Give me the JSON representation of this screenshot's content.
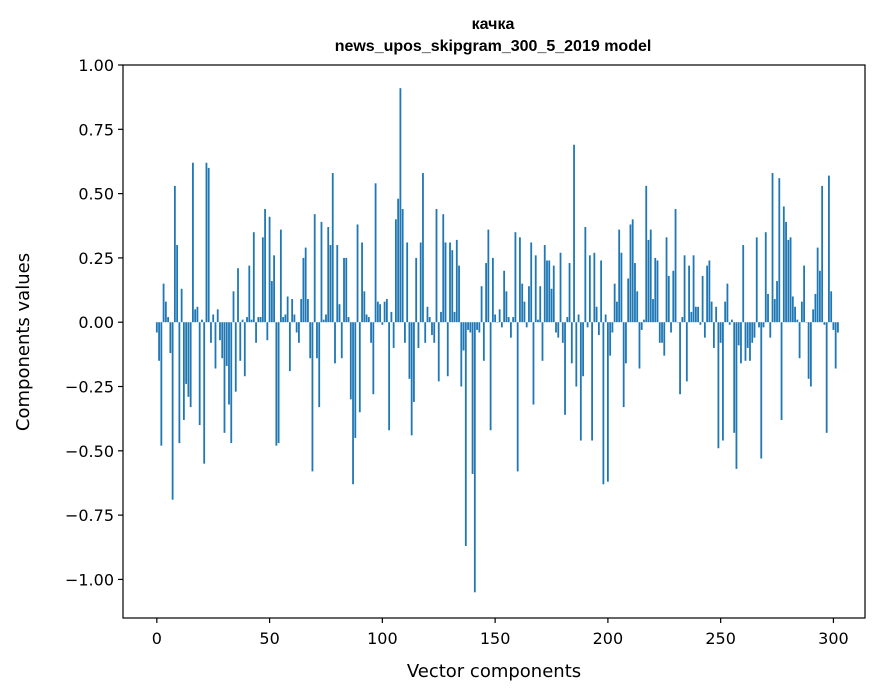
{
  "chart_data": {
    "type": "bar",
    "title_line1": "качка",
    "title_line2": "news_upos_skipgram_300_5_2019 model",
    "xlabel": "Vector components",
    "ylabel": "Components values",
    "xlim": [
      -15,
      314
    ],
    "ylim": [
      -1.15,
      1.0
    ],
    "xticks": [
      0,
      50,
      100,
      150,
      200,
      250,
      300
    ],
    "yticks": [
      1.0,
      0.75,
      0.5,
      0.25,
      0.0,
      -0.25,
      -0.5,
      -0.75,
      -1.0
    ],
    "ytick_labels": [
      "1.00",
      "0.75",
      "0.50",
      "0.25",
      "0.00",
      "−0.25",
      "−0.50",
      "−0.75",
      "−1.00"
    ],
    "bar_color": "#1f77b4",
    "values": [
      -0.04,
      -0.15,
      -0.48,
      0.15,
      0.08,
      0.02,
      -0.12,
      -0.69,
      0.53,
      0.3,
      -0.47,
      0.13,
      -0.38,
      -0.24,
      -0.29,
      -0.33,
      0.62,
      0.05,
      0.06,
      -0.4,
      0.01,
      -0.55,
      0.62,
      0.6,
      -0.08,
      0.03,
      -0.18,
      0.05,
      -0.07,
      -0.14,
      -0.43,
      -0.17,
      -0.32,
      -0.47,
      0.12,
      -0.27,
      0.21,
      -0.15,
      0.01,
      -0.21,
      0.02,
      0.22,
      0.01,
      0.35,
      -0.08,
      0.02,
      0.02,
      0.33,
      0.44,
      -0.07,
      0.41,
      0.16,
      0.26,
      -0.48,
      -0.47,
      0.36,
      0.02,
      0.03,
      0.1,
      -0.19,
      0.09,
      0.03,
      -0.04,
      -0.08,
      0.09,
      0.25,
      0.29,
      0.09,
      -0.14,
      -0.58,
      0.42,
      -0.14,
      -0.33,
      0.39,
      0.01,
      0.03,
      0.37,
      0.3,
      0.58,
      -0.16,
      0.3,
      0.07,
      -0.14,
      0.25,
      0.25,
      0.02,
      -0.3,
      -0.63,
      -0.45,
      0.38,
      -0.35,
      0.31,
      0.12,
      0.03,
      0.02,
      -0.08,
      -0.28,
      0.54,
      0.08,
      0.07,
      -0.01,
      0.08,
      0.09,
      -0.42,
      0.04,
      -0.1,
      0.4,
      0.48,
      0.91,
      0.44,
      -0.08,
      0.31,
      -0.22,
      -0.44,
      -0.31,
      0.25,
      -0.1,
      0.31,
      0.58,
      -0.08,
      0.06,
      0.02,
      -0.05,
      -0.08,
      0.44,
      -0.23,
      0.04,
      0.42,
      0.31,
      -0.21,
      0.31,
      0.28,
      0.04,
      0.32,
      0.22,
      -0.25,
      -0.11,
      -0.87,
      -0.03,
      -0.04,
      -0.59,
      -1.05,
      -0.03,
      -0.04,
      0.14,
      -0.15,
      0.23,
      0.36,
      -0.42,
      0.25,
      0.03,
      0.0,
      0.05,
      -0.02,
      0.2,
      0.12,
      0.02,
      -0.06,
      0.02,
      0.35,
      -0.58,
      0.33,
      0.15,
      0.08,
      -0.02,
      0.14,
      0.31,
      -0.32,
      0.26,
      0.01,
      0.14,
      -0.15,
      0.3,
      0.24,
      0.24,
      0.13,
      0.22,
      -0.04,
      -0.06,
      0.27,
      -0.08,
      -0.36,
      0.02,
      0.23,
      -0.16,
      0.69,
      -0.25,
      0.03,
      -0.46,
      -0.21,
      0.37,
      -0.02,
      0.26,
      -0.46,
      0.27,
      0.06,
      -0.05,
      0.24,
      -0.63,
      0.03,
      -0.62,
      -0.13,
      -0.04,
      0.15,
      0.08,
      0.36,
      0.27,
      -0.33,
      -0.16,
      0.17,
      0.38,
      0.4,
      0.23,
      0.12,
      -0.18,
      -0.03,
      0.01,
      0.53,
      0.32,
      0.36,
      0.09,
      0.25,
      0.24,
      -0.08,
      -0.08,
      -0.13,
      0.33,
      0.18,
      -0.04,
      0.2,
      0.44,
      0.0,
      -0.28,
      0.02,
      0.26,
      -0.23,
      0.22,
      0.04,
      0.26,
      0.06,
      0.06,
      -0.01,
      0.18,
      -0.06,
      0.22,
      0.24,
      0.08,
      -0.1,
      0.06,
      -0.49,
      -0.08,
      -0.46,
      0.08,
      0.15,
      -0.01,
      0.01,
      -0.43,
      -0.57,
      -0.09,
      -0.16,
      0.3,
      -0.15,
      -0.1,
      -0.15,
      -0.08,
      -0.06,
      0.33,
      -0.02,
      -0.53,
      -0.02,
      0.35,
      0.11,
      -0.06,
      0.58,
      0.09,
      0.16,
      0.56,
      -0.38,
      0.45,
      0.39,
      0.32,
      0.33,
      0.1,
      0.06,
      0.01,
      -0.14,
      0.08,
      0.22,
      0.0,
      -0.22,
      -0.25,
      0.05,
      0.11,
      0.29,
      0.2,
      0.53,
      -0.01,
      -0.43,
      0.57,
      0.12,
      -0.03,
      -0.18,
      -0.04
    ]
  }
}
